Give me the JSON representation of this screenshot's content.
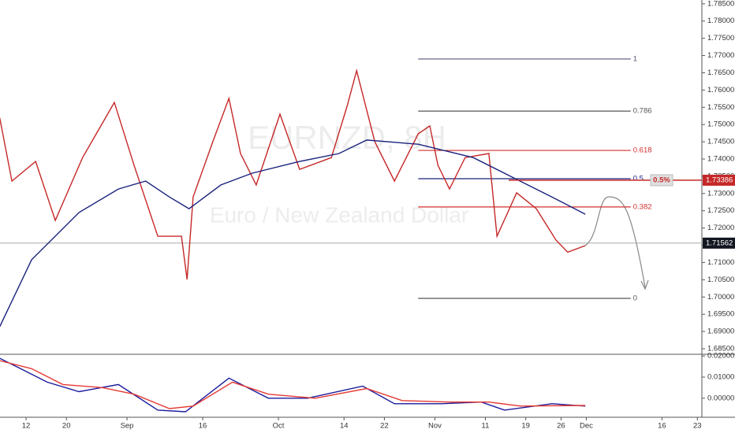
{
  "chart_data": [
    {
      "type": "line",
      "watermark": "EURNZD, 8H",
      "watermark_subtitle": "Euro / New Zealand Dollar",
      "xlim": [
        6.84,
        145.9
      ],
      "ylim": [
        1.6834,
        1.7861
      ],
      "yticks": [
        {
          "value": 1.685,
          "label": "1.68500"
        },
        {
          "value": 1.69,
          "label": "1.69000"
        },
        {
          "value": 1.695,
          "label": "1.69500"
        },
        {
          "value": 1.7,
          "label": "1.70000"
        },
        {
          "value": 1.705,
          "label": "1.70500"
        },
        {
          "value": 1.71,
          "label": "1.71000"
        },
        {
          "value": 1.715,
          "label": "1.71500"
        },
        {
          "value": 1.72,
          "label": "1.72000"
        },
        {
          "value": 1.725,
          "label": "1.72500"
        },
        {
          "value": 1.73,
          "label": "1.73000"
        },
        {
          "value": 1.735,
          "label": "1.73500"
        },
        {
          "value": 1.74,
          "label": "1.74000"
        },
        {
          "value": 1.745,
          "label": "1.74500"
        },
        {
          "value": 1.75,
          "label": "1.75000"
        },
        {
          "value": 1.755,
          "label": "1.75500"
        },
        {
          "value": 1.76,
          "label": "1.76000"
        },
        {
          "value": 1.765,
          "label": "1.76500"
        },
        {
          "value": 1.77,
          "label": "1.77000"
        },
        {
          "value": 1.775,
          "label": "1.77500"
        },
        {
          "value": 1.78,
          "label": "1.78000"
        },
        {
          "value": 1.785,
          "label": "1.78500"
        }
      ],
      "xticks": [
        12,
        20,
        {
          "value": 32,
          "label": "Sep"
        },
        {
          "value": 47,
          "label": "16"
        },
        {
          "value": 62,
          "label": "Oct"
        },
        {
          "value": 75,
          "label": "14"
        },
        {
          "value": 83,
          "label": "22"
        },
        {
          "value": 93,
          "label": "Nov"
        },
        {
          "value": 103,
          "label": "11"
        },
        {
          "value": 111,
          "label": "19"
        },
        {
          "value": 118,
          "label": "26"
        },
        {
          "value": 123,
          "label": "Dec"
        },
        {
          "value": 138,
          "label": "16"
        },
        {
          "value": 145,
          "label": "23"
        }
      ],
      "series": [
        {
          "color": "#c62828",
          "x": [
            6.8,
            9.2,
            13.9,
            17.8,
            23.2,
            29.5,
            33.4,
            38.1,
            42.8,
            43.9,
            45.1,
            49.0,
            52.2,
            54.5,
            57.6,
            62.3,
            66.2,
            72.5,
            75.6,
            77.5,
            81.1,
            85.0,
            89.7,
            92.0,
            93.6,
            95.9,
            99.0,
            103.7,
            105.3,
            109.2,
            113.1,
            117.0,
            119.3,
            122.8
          ],
          "values": [
            1.7519,
            1.7336,
            1.7393,
            1.7222,
            1.7404,
            1.7564,
            1.7382,
            1.7176,
            1.7176,
            1.7051,
            1.729,
            1.745,
            1.7576,
            1.7416,
            1.7325,
            1.753,
            1.737,
            1.7404,
            1.7553,
            1.7656,
            1.745,
            1.7336,
            1.7473,
            1.7496,
            1.7382,
            1.7313,
            1.7404,
            1.7416,
            1.7176,
            1.7302,
            1.7256,
            1.7165,
            1.713,
            1.7149
          ]
        },
        {
          "color": "#1a237e",
          "x": [
            6.8,
            13.1,
            22.5,
            30.3,
            35.7,
            40.4,
            44.3,
            50.6,
            56.8,
            66.2,
            74.0,
            79.5,
            89.7,
            100.6,
            108.4,
            116.2,
            122.8
          ],
          "values": [
            1.6914,
            1.7108,
            1.7245,
            1.7313,
            1.7336,
            1.729,
            1.7256,
            1.7325,
            1.7359,
            1.7393,
            1.7416,
            1.7455,
            1.7443,
            1.7404,
            1.7347,
            1.729,
            1.724
          ]
        }
      ],
      "level_range": [
        89.7,
        131.8
      ],
      "levels": [
        {
          "label": "1",
          "value": 1.769,
          "color": "#555577"
        },
        {
          "label": "0.786",
          "value": 1.7539,
          "color": "#555555"
        },
        {
          "label": "0.618",
          "value": 1.7425,
          "color": "#d32f2f"
        },
        {
          "label": "0.5",
          "value": 1.7343,
          "color": "#1a237e"
        },
        {
          "label": "0.382",
          "value": 1.7261,
          "color": "#d32f2f"
        },
        {
          "label": "0",
          "value": 1.6996,
          "color": "#555555"
        }
      ],
      "last_price": {
        "value": 1.71562,
        "label": "1.71562"
      },
      "target": {
        "value": 1.73386,
        "label": "1.73386",
        "change_label": "0.5%"
      }
    },
    {
      "type": "line",
      "xlim": [
        6.84,
        145.9
      ],
      "ylim": [
        -0.009,
        0.0208
      ],
      "yticks": [
        {
          "value": 0,
          "label": "0.00000"
        },
        {
          "value": 0.01,
          "label": "0.01000"
        },
        {
          "value": 0.02,
          "label": "0.02000"
        }
      ],
      "series": [
        {
          "color": "#1a1a9c",
          "x": [
            6.8,
            11.5,
            16.2,
            22.5,
            30.3,
            38.1,
            43.6,
            52.2,
            60.0,
            67.8,
            78.7,
            85.0,
            94.3,
            102.2,
            106.8,
            116.2,
            122.8
          ],
          "values": [
            0.0189,
            0.0133,
            0.0076,
            0.0031,
            0.0065,
            -0.0056,
            -0.0064,
            0.0095,
            0.0,
            0.0,
            0.0057,
            -0.0026,
            -0.0026,
            -0.0018,
            -0.0056,
            -0.0026,
            -0.0037
          ]
        },
        {
          "color": "#e53935",
          "x": [
            6.8,
            13.1,
            19.3,
            27.2,
            33.4,
            40.4,
            45.1,
            52.9,
            60.0,
            69.3,
            79.5,
            86.5,
            95.9,
            103.7,
            110.0,
            122.8
          ],
          "values": [
            0.0178,
            0.014,
            0.0065,
            0.005,
            0.0019,
            -0.0049,
            -0.0037,
            0.0076,
            0.0019,
            0.0,
            0.0046,
            -0.0011,
            -0.0018,
            -0.0018,
            -0.0037,
            -0.0034
          ]
        }
      ]
    }
  ]
}
